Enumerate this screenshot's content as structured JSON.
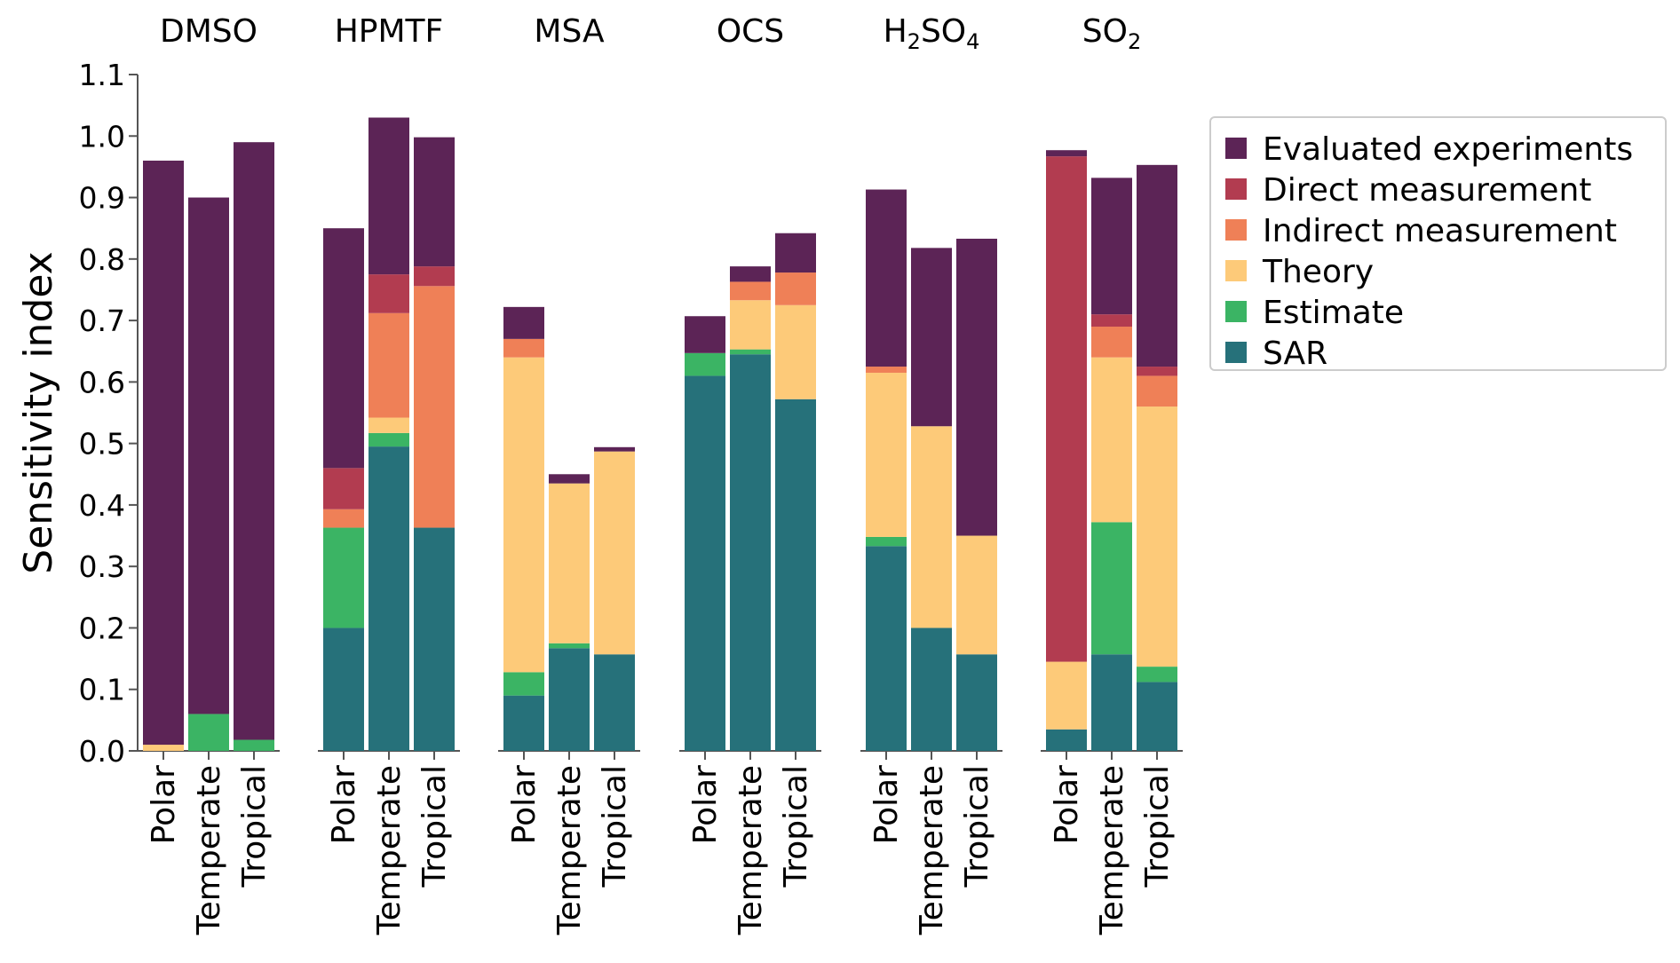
{
  "chart_data": {
    "type": "bar",
    "stacked": true,
    "ylabel": "Sensitivity index",
    "ylim": [
      0,
      1.1
    ],
    "yticks": [
      "0.0",
      "0.1",
      "0.2",
      "0.3",
      "0.4",
      "0.5",
      "0.6",
      "0.7",
      "0.8",
      "0.9",
      "1.0",
      "1.1"
    ],
    "grid": false,
    "legend_position": "top-right",
    "categories": [
      "Polar",
      "Temperate",
      "Tropical"
    ],
    "series": [
      {
        "name": "SAR",
        "color": "#26717a"
      },
      {
        "name": "Estimate",
        "color": "#3bb464"
      },
      {
        "name": "Theory",
        "color": "#fdca79"
      },
      {
        "name": "Indirect measurement",
        "color": "#ef8057"
      },
      {
        "name": "Direct measurement",
        "color": "#b23c50"
      },
      {
        "name": "Evaluated experiments",
        "color": "#5c2456"
      }
    ],
    "legend_order": [
      "Evaluated experiments",
      "Direct measurement",
      "Indirect measurement",
      "Theory",
      "Estimate",
      "SAR"
    ],
    "panels": [
      {
        "title": "DMSO",
        "title_sub": "",
        "title_tail": "",
        "bars": [
          {
            "category": "Polar",
            "values": [
              0.0,
              0.0,
              0.01,
              0.0,
              0.0,
              0.95
            ]
          },
          {
            "category": "Temperate",
            "values": [
              0.0,
              0.06,
              0.0,
              0.0,
              0.0,
              0.84
            ]
          },
          {
            "category": "Tropical",
            "values": [
              0.0,
              0.018,
              0.0,
              0.0,
              0.0,
              0.972
            ]
          }
        ]
      },
      {
        "title": "HPMTF",
        "title_sub": "",
        "title_tail": "",
        "bars": [
          {
            "category": "Polar",
            "values": [
              0.2,
              0.163,
              0.0,
              0.03,
              0.067,
              0.39
            ]
          },
          {
            "category": "Temperate",
            "values": [
              0.495,
              0.022,
              0.025,
              0.17,
              0.063,
              0.255
            ]
          },
          {
            "category": "Tropical",
            "values": [
              0.363,
              0.0,
              0.0,
              0.393,
              0.032,
              0.21
            ]
          }
        ]
      },
      {
        "title": "MSA",
        "title_sub": "",
        "title_tail": "",
        "bars": [
          {
            "category": "Polar",
            "values": [
              0.09,
              0.038,
              0.512,
              0.03,
              0.0,
              0.052
            ]
          },
          {
            "category": "Temperate",
            "values": [
              0.167,
              0.008,
              0.26,
              0.0,
              0.0,
              0.015
            ]
          },
          {
            "category": "Tropical",
            "values": [
              0.157,
              0.0,
              0.33,
              0.0,
              0.0,
              0.007
            ]
          }
        ]
      },
      {
        "title": "OCS",
        "title_sub": "",
        "title_tail": "",
        "bars": [
          {
            "category": "Polar",
            "values": [
              0.61,
              0.037,
              0.0,
              0.0,
              0.0,
              0.06
            ]
          },
          {
            "category": "Temperate",
            "values": [
              0.645,
              0.008,
              0.08,
              0.03,
              0.0,
              0.025
            ]
          },
          {
            "category": "Tropical",
            "values": [
              0.572,
              0.0,
              0.153,
              0.053,
              0.0,
              0.064
            ]
          }
        ]
      },
      {
        "title": "H",
        "title_sub": "2",
        "title_tail": "SO4",
        "title_parts": [
          "H",
          "2",
          "SO",
          "4"
        ],
        "bars": [
          {
            "category": "Polar",
            "values": [
              0.333,
              0.015,
              0.267,
              0.01,
              0.0,
              0.288
            ]
          },
          {
            "category": "Temperate",
            "values": [
              0.2,
              0.0,
              0.328,
              0.0,
              0.0,
              0.29
            ]
          },
          {
            "category": "Tropical",
            "values": [
              0.157,
              0.0,
              0.193,
              0.0,
              0.0,
              0.483
            ]
          }
        ]
      },
      {
        "title": "SO",
        "title_sub": "2",
        "title_tail": "",
        "bars": [
          {
            "category": "Polar",
            "values": [
              0.035,
              0.0,
              0.11,
              0.0,
              0.822,
              0.01
            ]
          },
          {
            "category": "Temperate",
            "values": [
              0.157,
              0.215,
              0.268,
              0.05,
              0.02,
              0.222
            ]
          },
          {
            "category": "Tropical",
            "values": [
              0.112,
              0.025,
              0.423,
              0.05,
              0.015,
              0.328
            ]
          }
        ]
      }
    ]
  }
}
